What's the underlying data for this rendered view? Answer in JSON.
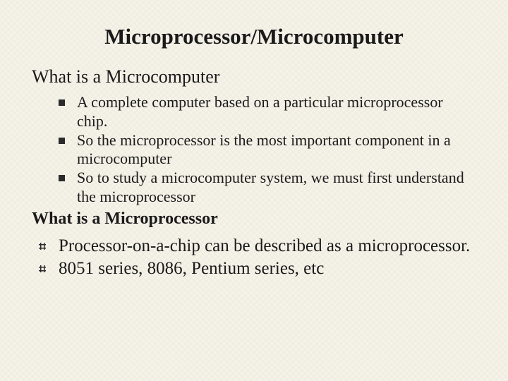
{
  "slide": {
    "title": "Microprocessor/Microcomputer",
    "heading1": "What is a Microcomputer",
    "bullets": [
      "A complete computer based on a particular microprocessor chip.",
      "So the microprocessor is the most important component in a microcomputer",
      "So to study a microcomputer system, we must first understand the microprocessor"
    ],
    "heading2": "What is a Microprocessor",
    "outer_bullets": [
      "Processor-on-a-chip can be described as a microprocessor.",
      "8051 series, 8086, Pentium series, etc"
    ]
  },
  "style": {
    "background_color": "#f5f2e8",
    "text_color": "#1a1a1a",
    "title_fontsize": 31,
    "heading_fontsize": 26,
    "bullet_fontsize": 22,
    "outer_bullet_fontsize": 25,
    "font_family": "Times New Roman"
  }
}
